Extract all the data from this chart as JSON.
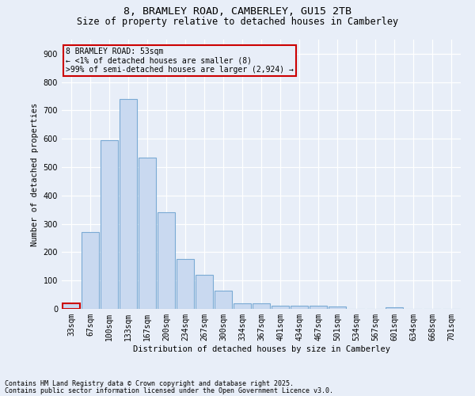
{
  "title_line1": "8, BRAMLEY ROAD, CAMBERLEY, GU15 2TB",
  "title_line2": "Size of property relative to detached houses in Camberley",
  "xlabel": "Distribution of detached houses by size in Camberley",
  "ylabel": "Number of detached properties",
  "categories": [
    "33sqm",
    "67sqm",
    "100sqm",
    "133sqm",
    "167sqm",
    "200sqm",
    "234sqm",
    "267sqm",
    "300sqm",
    "334sqm",
    "367sqm",
    "401sqm",
    "434sqm",
    "467sqm",
    "501sqm",
    "534sqm",
    "567sqm",
    "601sqm",
    "634sqm",
    "668sqm",
    "701sqm"
  ],
  "values": [
    20,
    270,
    595,
    740,
    535,
    340,
    175,
    120,
    65,
    20,
    20,
    10,
    12,
    10,
    7,
    0,
    0,
    5,
    0,
    0,
    0
  ],
  "bar_color": "#c9d9f0",
  "bar_edge_color": "#7aaad4",
  "highlight_bar_index": 0,
  "highlight_edge_color": "#cc0000",
  "annotation_text": "8 BRAMLEY ROAD: 53sqm\n← <1% of detached houses are smaller (8)\n>99% of semi-detached houses are larger (2,924) →",
  "annotation_box_edge": "#cc0000",
  "ylim": [
    0,
    950
  ],
  "yticks": [
    0,
    100,
    200,
    300,
    400,
    500,
    600,
    700,
    800,
    900
  ],
  "bg_color": "#e8eef8",
  "footer_line1": "Contains HM Land Registry data © Crown copyright and database right 2025.",
  "footer_line2": "Contains public sector information licensed under the Open Government Licence v3.0.",
  "grid_color": "#ffffff",
  "title_fontsize": 9.5,
  "subtitle_fontsize": 8.5,
  "axis_label_fontsize": 7.5,
  "tick_fontsize": 7,
  "annotation_fontsize": 7,
  "footer_fontsize": 6
}
